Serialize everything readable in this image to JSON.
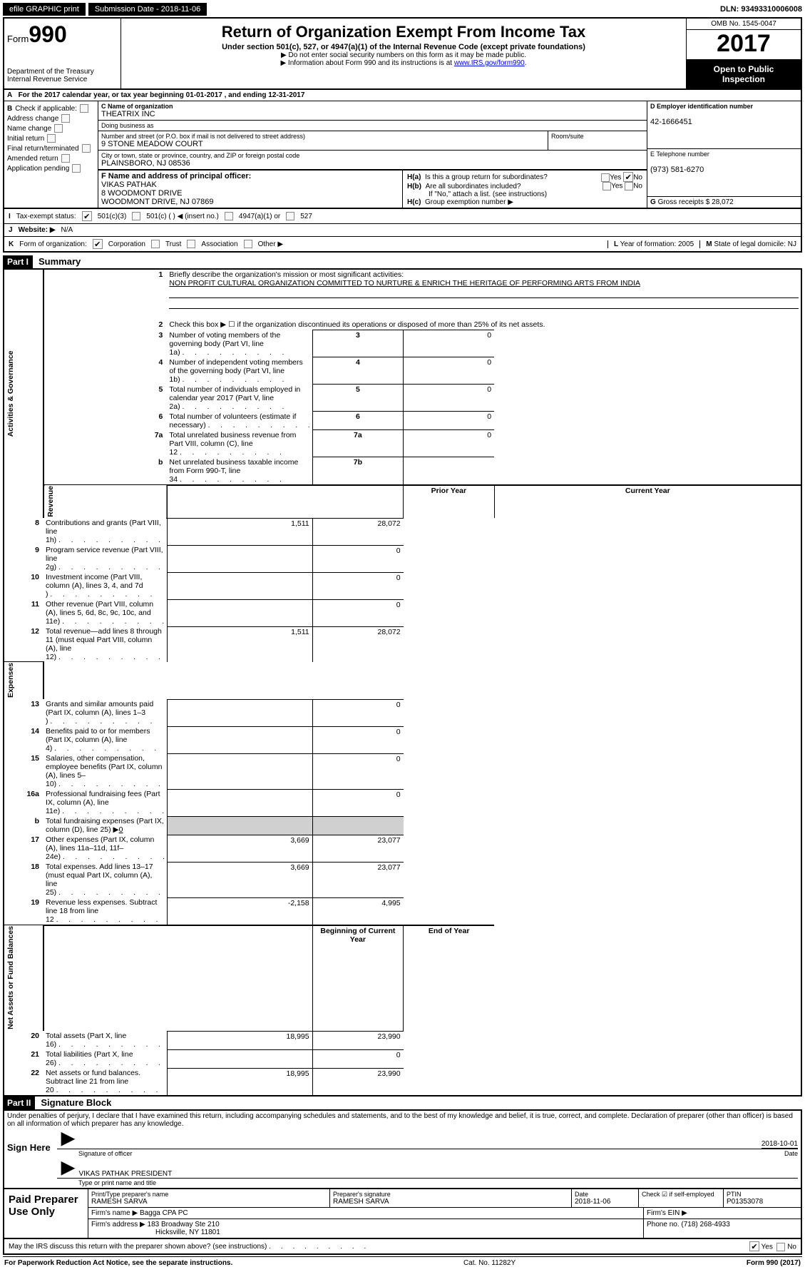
{
  "topbar": {
    "efile_btn": "efile GRAPHIC print",
    "sub_date_label": "Submission Date - ",
    "sub_date": "2018-11-06",
    "dln_label": "DLN: ",
    "dln": "93493310006008"
  },
  "header": {
    "form_label": "Form",
    "form_no": "990",
    "dept1": "Department of the Treasury",
    "dept2": "Internal Revenue Service",
    "title": "Return of Organization Exempt From Income Tax",
    "subtitle": "Under section 501(c), 527, or 4947(a)(1) of the Internal Revenue Code (except private foundations)",
    "line1": "▶ Do not enter social security numbers on this form as it may be made public.",
    "line2_pre": "▶ Information about Form 990 and its instructions is at ",
    "line2_link": "www.IRS.gov/form990",
    "omb": "OMB No. 1545-0047",
    "year": "2017",
    "open1": "Open to Public",
    "open2": "Inspection"
  },
  "rowA": {
    "a": "A",
    "text_pre": "For the 2017 calendar year, or tax year beginning ",
    "begin": "01-01-2017",
    "mid": " , and ending ",
    "end": "12-31-2017"
  },
  "colB": {
    "hdr": "B",
    "check_if": "Check if applicable:",
    "items": [
      "Address change",
      "Name change",
      "Initial return",
      "Final return/terminated",
      "Amended return",
      "Application pending"
    ]
  },
  "colC": {
    "c_label": "C Name of organization",
    "org": "THEATRIX INC",
    "dba_label": "Doing business as",
    "dba": "",
    "addr_label": "Number and street (or P.O. box if mail is not delivered to street address)",
    "addr": "9 STONE MEADOW COURT",
    "room_label": "Room/suite",
    "city_label": "City or town, state or province, country, and ZIP or foreign postal code",
    "city": "PLAINSBORO, NJ  08536",
    "f_label": "F Name and address of principal officer:",
    "f_name": "VIKAS PATHAK",
    "f_addr1": "8 WOODMONT DRIVE",
    "f_addr2": "WOODMONT DRIVE, NJ  07869"
  },
  "colDE": {
    "d_label": "D Employer identification number",
    "ein": "42-1666451",
    "e_label": "E Telephone number",
    "phone": "(973) 581-6270",
    "g_label": "G",
    "g_text": "Gross receipts $ ",
    "g_val": "28,072"
  },
  "sectionH": {
    "ha_label": "H(a)",
    "ha_text": "Is this a group return for subordinates?",
    "hb_label": "H(b)",
    "hb_text": "Are all subordinates included?",
    "hb_note": "If \"No,\" attach a list. (see instructions)",
    "hc_label": "H(c)",
    "hc_text": "Group exemption number ▶",
    "yes": "Yes",
    "no": "No"
  },
  "rowI": {
    "label": "I",
    "text": "Tax-exempt status:",
    "opts": [
      "501(c)(3)",
      "501(c) (  ) ◀ (insert no.)",
      "4947(a)(1) or",
      "527"
    ]
  },
  "rowJ": {
    "label": "J",
    "text": "Website: ▶",
    "val": "N/A"
  },
  "rowK": {
    "label": "K",
    "text": "Form of organization:",
    "opts": [
      "Corporation",
      "Trust",
      "Association",
      "Other ▶"
    ],
    "l_label": "L",
    "l_text": "Year of formation: ",
    "l_val": "2005",
    "m_label": "M",
    "m_text": "State of legal domicile: ",
    "m_val": "NJ"
  },
  "part1": {
    "hdr": "Part I",
    "title": "Summary",
    "side_gov": "Activities & Governance",
    "side_rev": "Revenue",
    "side_exp": "Expenses",
    "side_net": "Net Assets or Fund Balances",
    "l1_label": "Briefly describe the organization's mission or most significant activities:",
    "l1_val": "NON PROFIT CULTURAL ORGANIZATION COMMITTED TO NURTURE & ENRICH THE HERITAGE OF PERFORMING ARTS FROM INDIA",
    "l2": "Check this box ▶ ☐  if the organization discontinued its operations or disposed of more than 25% of its net assets.",
    "lines_gov": [
      {
        "n": "3",
        "t": "Number of voting members of the governing body (Part VI, line 1a)",
        "k": "3",
        "v": "0"
      },
      {
        "n": "4",
        "t": "Number of independent voting members of the governing body (Part VI, line 1b)",
        "k": "4",
        "v": "0"
      },
      {
        "n": "5",
        "t": "Total number of individuals employed in calendar year 2017 (Part V, line 2a)",
        "k": "5",
        "v": "0"
      },
      {
        "n": "6",
        "t": "Total number of volunteers (estimate if necessary)",
        "k": "6",
        "v": "0"
      },
      {
        "n": "7a",
        "t": "Total unrelated business revenue from Part VIII, column (C), line 12",
        "k": "7a",
        "v": "0"
      },
      {
        "n": "b",
        "t": "Net unrelated business taxable income from Form 990-T, line 34",
        "k": "7b",
        "v": ""
      }
    ],
    "hdr_prior": "Prior Year",
    "hdr_curr": "Current Year",
    "lines_rev": [
      {
        "n": "8",
        "t": "Contributions and grants (Part VIII, line 1h)",
        "p": "1,511",
        "c": "28,072"
      },
      {
        "n": "9",
        "t": "Program service revenue (Part VIII, line 2g)",
        "p": "",
        "c": "0"
      },
      {
        "n": "10",
        "t": "Investment income (Part VIII, column (A), lines 3, 4, and 7d )",
        "p": "",
        "c": "0"
      },
      {
        "n": "11",
        "t": "Other revenue (Part VIII, column (A), lines 5, 6d, 8c, 9c, 10c, and 11e)",
        "p": "",
        "c": "0"
      },
      {
        "n": "12",
        "t": "Total revenue—add lines 8 through 11 (must equal Part VIII, column (A), line 12)",
        "p": "1,511",
        "c": "28,072"
      }
    ],
    "lines_exp": [
      {
        "n": "13",
        "t": "Grants and similar amounts paid (Part IX, column (A), lines 1–3 )",
        "p": "",
        "c": "0"
      },
      {
        "n": "14",
        "t": "Benefits paid to or for members (Part IX, column (A), line 4)",
        "p": "",
        "c": "0"
      },
      {
        "n": "15",
        "t": "Salaries, other compensation, employee benefits (Part IX, column (A), lines 5–10)",
        "p": "",
        "c": "0"
      },
      {
        "n": "16a",
        "t": "Professional fundraising fees (Part IX, column (A), line 11e)",
        "p": "",
        "c": "0"
      }
    ],
    "l16b_n": "b",
    "l16b_t": "Total fundraising expenses (Part IX, column (D), line 25) ▶",
    "l16b_v": "0",
    "lines_exp2": [
      {
        "n": "17",
        "t": "Other expenses (Part IX, column (A), lines 11a–11d, 11f–24e)",
        "p": "3,669",
        "c": "23,077"
      },
      {
        "n": "18",
        "t": "Total expenses. Add lines 13–17 (must equal Part IX, column (A), line 25)",
        "p": "3,669",
        "c": "23,077"
      },
      {
        "n": "19",
        "t": "Revenue less expenses. Subtract line 18 from line 12",
        "p": "-2,158",
        "c": "4,995"
      }
    ],
    "hdr_begin": "Beginning of Current Year",
    "hdr_end": "End of Year",
    "lines_net": [
      {
        "n": "20",
        "t": "Total assets (Part X, line 16)",
        "p": "18,995",
        "c": "23,990"
      },
      {
        "n": "21",
        "t": "Total liabilities (Part X, line 26)",
        "p": "",
        "c": "0"
      },
      {
        "n": "22",
        "t": "Net assets or fund balances. Subtract line 21 from line 20",
        "p": "18,995",
        "c": "23,990"
      }
    ]
  },
  "part2": {
    "hdr": "Part II",
    "title": "Signature Block",
    "decl": "Under penalties of perjury, I declare that I have examined this return, including accompanying schedules and statements, and to the best of my knowledge and belief, it is true, correct, and complete. Declaration of preparer (other than officer) is based on all information of which preparer has any knowledge.",
    "sign_here": "Sign Here",
    "sig_officer": "Signature of officer",
    "sig_date": "2018-10-01",
    "date_lbl": "Date",
    "name_title": "VIKAS PATHAK  PRESIDENT",
    "name_lbl": "Type or print name and title",
    "paid_prep": "Paid Preparer Use Only",
    "prep_name_lbl": "Print/Type preparer's name",
    "prep_name": "RAMESH SARVA",
    "prep_sig_lbl": "Preparer's signature",
    "prep_sig": "RAMESH SARVA",
    "prep_date_lbl": "Date",
    "prep_date": "2018-11-06",
    "self_emp": "Check ☑ if self-employed",
    "ptin_lbl": "PTIN",
    "ptin": "P01353078",
    "firm_name_lbl": "Firm's name    ▶",
    "firm_name": "Bagga CPA PC",
    "firm_ein_lbl": "Firm's EIN ▶",
    "firm_addr_lbl": "Firm's address ▶",
    "firm_addr1": "183 Broadway Ste 210",
    "firm_addr2": "Hicksville, NY  11801",
    "phone_lbl": "Phone no. ",
    "phone": "(718) 268-4933",
    "discuss": "May the IRS discuss this return with the preparer shown above? (see instructions)",
    "yes": "Yes",
    "no": "No"
  },
  "footer": {
    "left": "For Paperwork Reduction Act Notice, see the separate instructions.",
    "mid": "Cat. No. 11282Y",
    "right": "Form 990 (2017)"
  }
}
